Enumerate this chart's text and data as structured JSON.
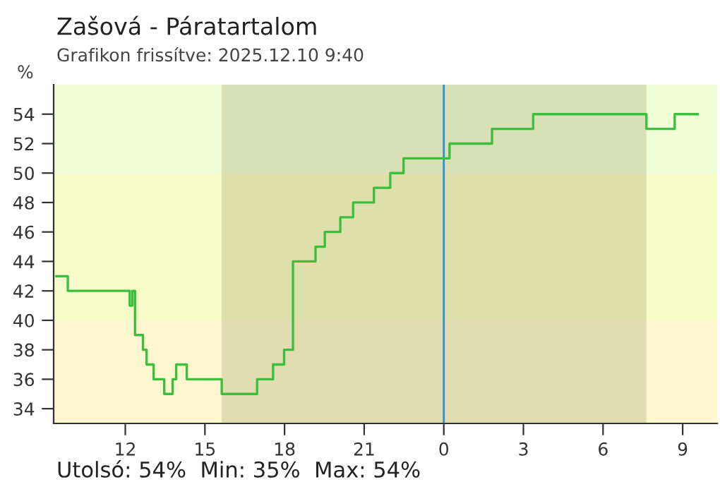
{
  "chart_data": {
    "type": "step",
    "title": "Zašová - Páratartalom",
    "subtitle": "Grafikon frissítve: 2025.12.10 9:40",
    "ylabel": "%",
    "annotations": [
      "Utolsó: 54%  Min: 35%  Max: 54%"
    ],
    "x": [
      "2025-12-09T09:24",
      "2025-12-09T09:50",
      "2025-12-09T12:07",
      "2025-12-09T12:10",
      "2025-12-09T12:16",
      "2025-12-09T12:22",
      "2025-12-09T12:40",
      "2025-12-09T12:48",
      "2025-12-09T13:04",
      "2025-12-09T13:28",
      "2025-12-09T13:47",
      "2025-12-09T13:55",
      "2025-12-09T14:19",
      "2025-12-09T15:38",
      "2025-12-09T16:58",
      "2025-12-09T17:34",
      "2025-12-09T17:59",
      "2025-12-09T18:19",
      "2025-12-09T19:10",
      "2025-12-09T19:31",
      "2025-12-09T20:06",
      "2025-12-09T20:35",
      "2025-12-09T21:22",
      "2025-12-09T21:59",
      "2025-12-09T22:29",
      "2025-12-10T00:13",
      "2025-12-10T01:49",
      "2025-12-10T03:22",
      "2025-12-10T07:38",
      "2025-12-10T08:42",
      "2025-12-10T09:34"
    ],
    "series": [
      {
        "color": "#3cbf3c",
        "values": [
          43,
          42,
          42,
          41,
          42,
          39,
          38,
          37,
          36,
          35,
          36,
          37,
          36,
          35,
          36,
          37,
          38,
          44,
          45,
          46,
          47,
          48,
          49,
          50,
          51,
          52,
          53,
          54,
          53,
          54,
          54
        ]
      }
    ],
    "xlim": [
      "2025-12-09T09:18",
      "2025-12-10T10:18"
    ],
    "ylim": [
      33,
      56
    ],
    "xticks": [
      {
        "value": "2025-12-09T12:00",
        "label": "12"
      },
      {
        "value": "2025-12-09T15:00",
        "label": "15"
      },
      {
        "value": "2025-12-09T18:00",
        "label": "18"
      },
      {
        "value": "2025-12-09T21:00",
        "label": "21"
      },
      {
        "value": "2025-12-10T00:00",
        "label": "0"
      },
      {
        "value": "2025-12-10T03:00",
        "label": "3"
      },
      {
        "value": "2025-12-10T06:00",
        "label": "6"
      },
      {
        "value": "2025-12-10T09:00",
        "label": "9"
      }
    ],
    "yticks": [
      34,
      36,
      38,
      40,
      42,
      44,
      46,
      48,
      50,
      52,
      54
    ],
    "bands": [
      {
        "axis": "y",
        "from": 33,
        "to": 40,
        "color": "#fef7d0"
      },
      {
        "axis": "y",
        "from": 40,
        "to": 50,
        "color": "#f7fdc8"
      },
      {
        "axis": "y",
        "from": 50,
        "to": 56,
        "color": "#effed6"
      },
      {
        "axis": "x",
        "from": "2025-12-09T15:38",
        "to": "2025-12-10T07:38",
        "color": "#b0a878"
      }
    ],
    "ref_lines": [
      {
        "axis": "x",
        "value": "2025-12-10T00:00",
        "color": "#2a8fd8"
      }
    ],
    "grid": false,
    "legend": false,
    "marker": "none",
    "line_style": "solid"
  }
}
